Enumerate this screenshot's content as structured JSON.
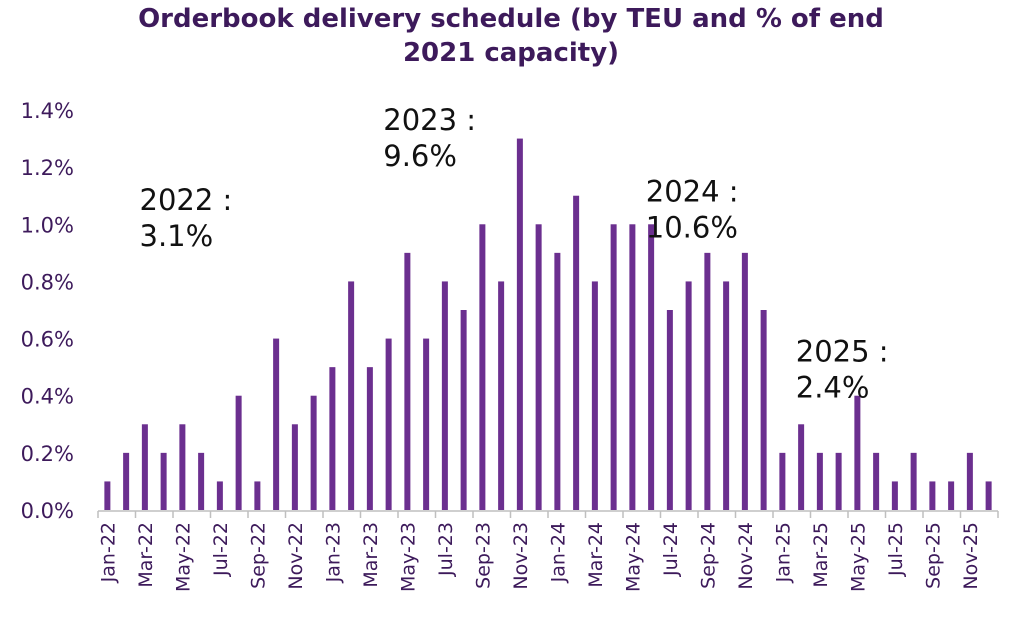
{
  "chart_data": {
    "type": "bar",
    "title_lines": [
      "Orderbook delivery schedule (by TEU and % of end",
      "2021 capacity)"
    ],
    "categories": [
      "Jan-22",
      "Feb-22",
      "Mar-22",
      "Apr-22",
      "May-22",
      "Jun-22",
      "Jul-22",
      "Aug-22",
      "Sep-22",
      "Oct-22",
      "Nov-22",
      "Dec-22",
      "Jan-23",
      "Feb-23",
      "Mar-23",
      "Apr-23",
      "May-23",
      "Jun-23",
      "Jul-23",
      "Aug-23",
      "Sep-23",
      "Oct-23",
      "Nov-23",
      "Dec-23",
      "Jan-24",
      "Feb-24",
      "Mar-24",
      "Apr-24",
      "May-24",
      "Jun-24",
      "Jul-24",
      "Aug-24",
      "Sep-24",
      "Oct-24",
      "Nov-24",
      "Dec-24",
      "Jan-25",
      "Feb-25",
      "Mar-25",
      "Apr-25",
      "May-25",
      "Jun-25",
      "Jul-25",
      "Aug-25",
      "Sep-25",
      "Oct-25",
      "Nov-25",
      "Dec-25"
    ],
    "shown_tick_labels": [
      "Jan-22",
      "Mar-22",
      "May-22",
      "Jul-22",
      "Sep-22",
      "Nov-22",
      "Jan-23",
      "Mar-23",
      "May-23",
      "Jul-23",
      "Sep-23",
      "Nov-23",
      "Jan-24",
      "Mar-24",
      "May-24",
      "Jul-24",
      "Sep-24",
      "Nov-24",
      "Jan-25",
      "Mar-25",
      "May-25",
      "Jul-25",
      "Sep-25",
      "Nov-25"
    ],
    "values": [
      0.1,
      0.2,
      0.3,
      0.2,
      0.3,
      0.2,
      0.1,
      0.4,
      0.1,
      0.6,
      0.3,
      0.4,
      0.5,
      0.8,
      0.5,
      0.6,
      0.9,
      0.6,
      0.8,
      0.7,
      1.0,
      0.8,
      1.3,
      1.0,
      0.9,
      1.1,
      0.8,
      1.0,
      1.0,
      1.0,
      0.7,
      0.8,
      0.9,
      0.8,
      0.9,
      0.7,
      0.2,
      0.3,
      0.2,
      0.2,
      0.4,
      0.2,
      0.1,
      0.2,
      0.1,
      0.1,
      0.2,
      0.1
    ],
    "y_tick_labels": [
      "0.0%",
      "0.2%",
      "0.4%",
      "0.6%",
      "0.8%",
      "1.0%",
      "1.2%",
      "1.4%"
    ],
    "ylim": [
      0,
      1.4
    ],
    "bar_color": "#6b2f8f",
    "text_color": "#3d1a5b",
    "grid": false,
    "annotations": [
      {
        "line1": "2022 :",
        "line2": "3.1%",
        "month_index": 2,
        "value": 1.05
      },
      {
        "line1": "2023 :",
        "line2": "9.6%",
        "month_index": 15,
        "value": 1.33
      },
      {
        "line1": "2024 :",
        "line2": "10.6%",
        "month_index": 29,
        "value": 1.08
      },
      {
        "line1": "2025 :",
        "line2": "2.4%",
        "month_index": 37,
        "value": 0.52
      }
    ]
  }
}
